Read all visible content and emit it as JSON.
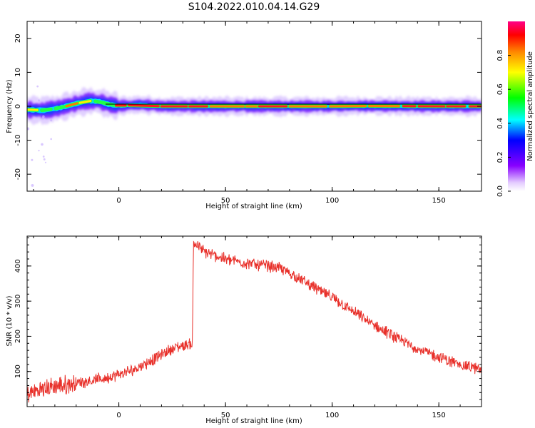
{
  "title": "S104.2022.010.04.14.G29",
  "chart_data": [
    {
      "type": "heatmap",
      "name": "spectrogram",
      "xlabel": "Height of straight line (km)",
      "ylabel": "Frequency (Hz)",
      "xlim": [
        -43,
        170
      ],
      "ylim": [
        -25,
        25
      ],
      "xticks": [
        0,
        50,
        100,
        150
      ],
      "yticks": [
        -20,
        -10,
        0,
        10,
        20
      ],
      "colormap": "rainbow",
      "colorbar": {
        "label": "Normalized spectral amplitude",
        "range": [
          0.0,
          1.0
        ],
        "ticks": [
          0.0,
          0.2,
          0.4,
          0.6,
          0.8
        ]
      },
      "reference_line_freq": 0,
      "ridge": [
        {
          "x": -43,
          "y": -1.0
        },
        {
          "x": -35,
          "y": -1.2
        },
        {
          "x": -28,
          "y": -0.5
        },
        {
          "x": -20,
          "y": 0.8
        },
        {
          "x": -14,
          "y": 1.6
        },
        {
          "x": -9,
          "y": 1.4
        },
        {
          "x": -5,
          "y": 0.6
        },
        {
          "x": 0,
          "y": 0.1
        },
        {
          "x": 10,
          "y": 0.5
        },
        {
          "x": 20,
          "y": 0.0
        },
        {
          "x": 50,
          "y": 0.0
        },
        {
          "x": 100,
          "y": 0.0
        },
        {
          "x": 113,
          "y": 0.1
        },
        {
          "x": 150,
          "y": 0.0
        },
        {
          "x": 170,
          "y": 0.0
        }
      ]
    },
    {
      "type": "line",
      "name": "snr",
      "xlabel": "Height of straight line (km)",
      "ylabel": "SNR (10 * v/v)",
      "xlim": [
        -43,
        170
      ],
      "ylim": [
        0,
        485
      ],
      "xticks": [
        0,
        50,
        100,
        150
      ],
      "yticks": [
        100,
        200,
        300,
        400
      ],
      "color": "#e8302a",
      "series": [
        {
          "x": [
            -43,
            -35,
            -25,
            -15,
            -5,
            5,
            15,
            25,
            34.5,
            35,
            40,
            50,
            60,
            70,
            75,
            80,
            90,
            100,
            110,
            120,
            130,
            140,
            150,
            160,
            170
          ],
          "values": [
            35,
            52,
            62,
            72,
            82,
            100,
            130,
            165,
            180,
            470,
            440,
            420,
            408,
            400,
            395,
            380,
            345,
            310,
            270,
            230,
            195,
            165,
            140,
            120,
            105
          ]
        }
      ]
    }
  ]
}
